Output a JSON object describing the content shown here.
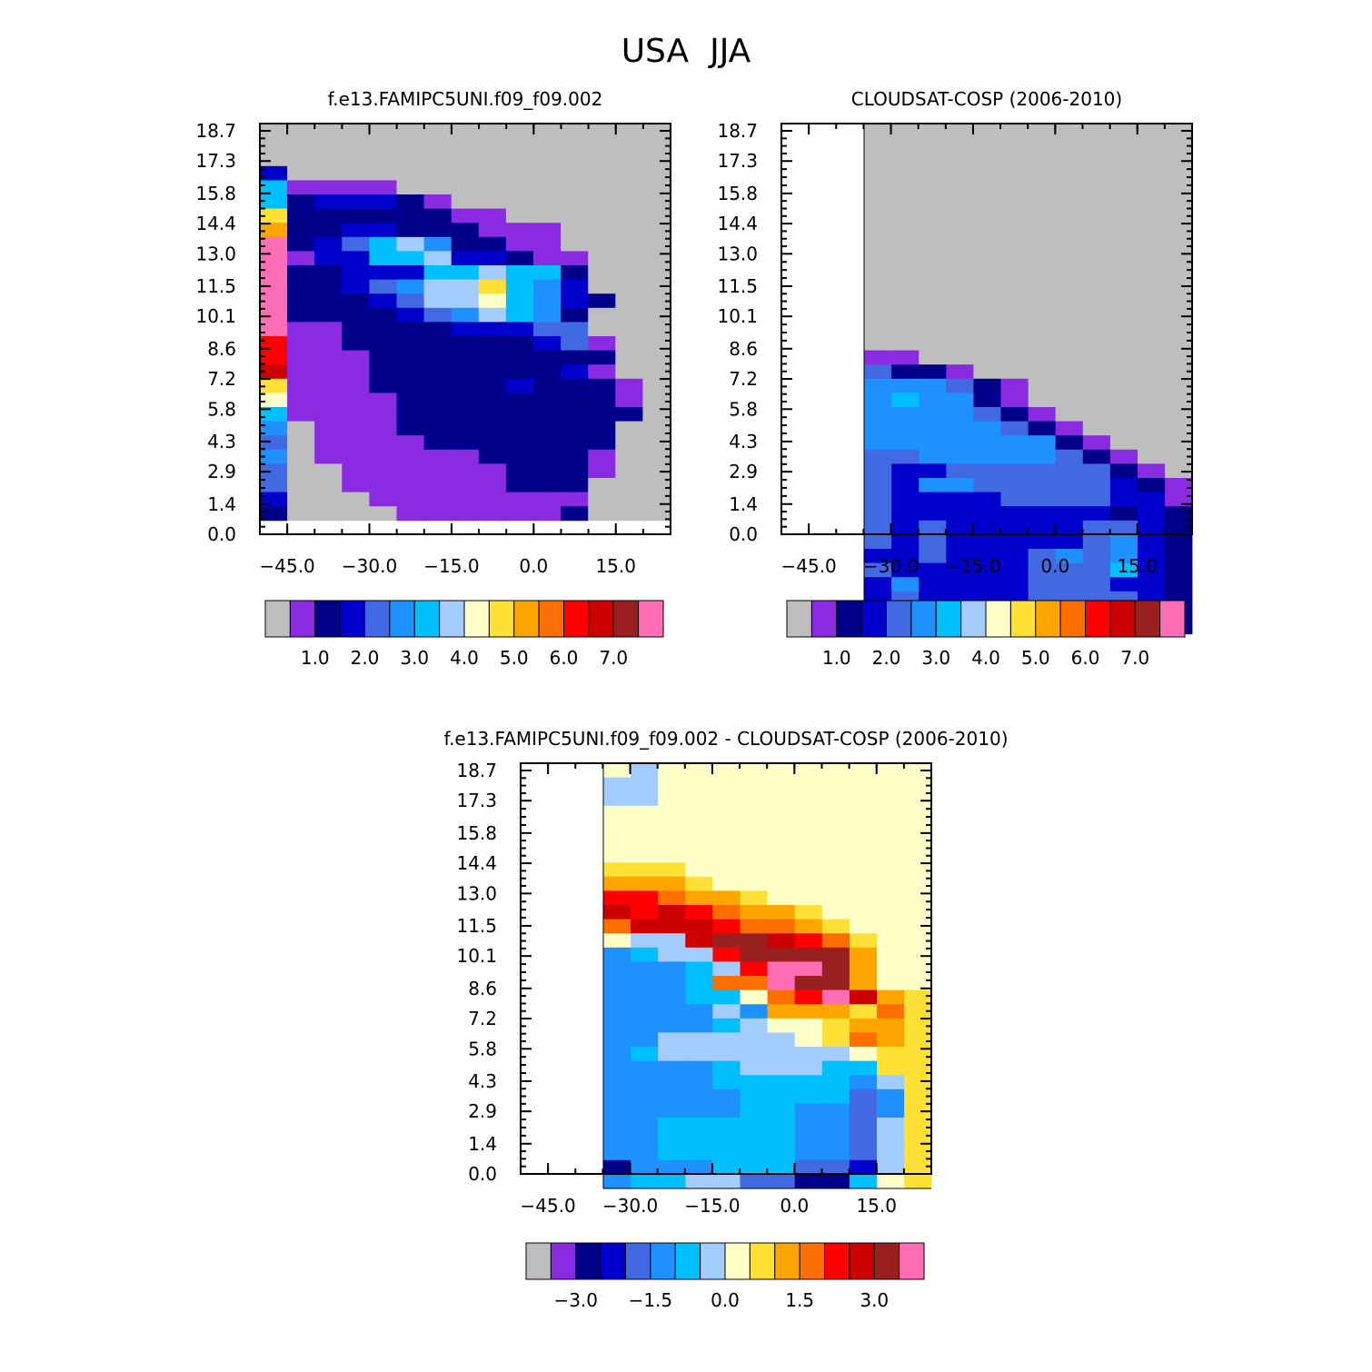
{
  "figure": {
    "title": "USA  JJA"
  },
  "colors": {
    "missing": "#bebebe",
    "palette": [
      "#bebebe",
      "#8a2be2",
      "#00008b",
      "#0000cd",
      "#4169e1",
      "#1e90ff",
      "#00bfff",
      "#a3cdfe",
      "#ffffc8",
      "#ffe135",
      "#ffa500",
      "#ff6f00",
      "#ff0000",
      "#cd0000",
      "#9a2020",
      "#ff6eb4"
    ]
  },
  "chart_data": [
    {
      "type": "heatmap",
      "title": "f.e13.FAMIPC5UNI.f09_f09.002",
      "x_ticks": [
        "-45.0",
        "-30.0",
        "-15.0",
        "0.0",
        "15.0"
      ],
      "y_ticks": [
        "0.0",
        "1.4",
        "2.9",
        "4.3",
        "5.8",
        "7.2",
        "8.6",
        "10.1",
        "11.5",
        "13.0",
        "14.4",
        "15.8",
        "17.3",
        "18.7"
      ],
      "colorbar_labels": [
        "1.0",
        "2.0",
        "3.0",
        "4.0",
        "5.0",
        "6.0",
        "7.0"
      ],
      "grid_note": "rows are y-level bins from 18.7 (top) down to 0.0; columns are x-bins from about -50 to 25; each number is a colour-bin index (0 = grey background)",
      "cells": [
        "000000000000000",
        "000000000000000",
        "000000000000000",
        "300000000000000",
        "611110000000000",
        "623332100000000",
        "922222211000000",
        "A22332221110000",
        "F23467522110000",
        "F13366733211000",
        "F22333667662000",
        "F22345779653000",
        "F22234778653200",
        "F22223457652000",
        "F11222233344000",
        "C11222222234100",
        "C11122222222200",
        "D11122222223100",
        "9111222223222100",
        "8111122222222100",
        "611112222222220",
        "501112222222200",
        "401111222222200",
        "501111112222100",
        "400111111222100",
        "400111111222000",
        "300011111111000",
        "200001111112000"
      ]
    },
    {
      "type": "heatmap",
      "title": "CLOUDSAT-COSP (2006-2010)",
      "x_ticks": [
        "-45.0",
        "-30.0",
        "-15.0",
        "0.0",
        "15.0"
      ],
      "y_ticks": [
        "0.0",
        "1.4",
        "2.9",
        "4.3",
        "5.8",
        "7.2",
        "8.6",
        "10.1",
        "11.5",
        "13.0",
        "14.4",
        "15.8",
        "17.3",
        "18.7"
      ],
      "colorbar_labels": [
        "1.0",
        "2.0",
        "3.0",
        "4.0",
        "5.0",
        "6.0",
        "7.0"
      ],
      "grid_note": "valid region spans x from about -35 to 25 and y from 0.7 to 18.7; column index 0 starts at x = -35",
      "cells": [
        "000000000000",
        "000000000000",
        "000000000000",
        "000000000000",
        "000000000000",
        "000000000000",
        "000000000000",
        "000000000000",
        "000000000000",
        "000000000000",
        "000000000000",
        "000000000000",
        "000000000000",
        "000000000000",
        "000000000000",
        "000000000000",
        "110000000000",
        "422100000000",
        "555421000000",
        "565521000000",
        "555542100000",
        "555554210000",
        "555555521000",
        "445555542100",
        "433444444210",
        "435544444321",
        "433334444331",
        "433333333232",
        "434333334432",
        "434333334532",
        "334333454532",
        "433333444632",
        "353333444332",
        "343333444432",
        "624333445532",
        "232222228832"
      ]
    },
    {
      "type": "heatmap",
      "title": "f.e13.FAMIPC5UNI.f09_f09.002 - CLOUDSAT-COSP (2006-2010)",
      "x_ticks": [
        "-45.0",
        "-30.0",
        "-15.0",
        "0.0",
        "15.0"
      ],
      "y_ticks": [
        "0.0",
        "1.4",
        "2.9",
        "4.3",
        "5.8",
        "7.2",
        "8.6",
        "10.1",
        "11.5",
        "13.0",
        "14.4",
        "15.8",
        "17.3",
        "18.7"
      ],
      "colorbar_labels": [
        "-3.0",
        "-1.5",
        "0.0",
        "1.5",
        "3.0"
      ],
      "grid_note": "difference field; valid region spans x from about -35 to 25 and y from 0.7 to 18.7",
      "cells": [
        "87888888888888",
        "77888888888888",
        "77888888888888",
        "88888888888888",
        "88888888888888",
        "88888888888888",
        "88888888888888",
        "99988888888888",
        "AAA98888888888",
        "CCBAA988888888",
        "DCDCBAA9888888",
        "BDDDCBBA988888",
        "877DEEDCB98888",
        "5677CEEEEA8888",
        "55567CFFEA8888",
        "5556BBFEEA8888",
        "555668BCFDA988",
        "555575AAA9B988",
        "555567889AA988",
        "557777789BA988",
        "567777777899888",
        "555567776699888",
        "555566666579888",
        "555556666459888",
        "555556655459888",
        "556666655479888",
        "556666655479888",
        "556666655479888",
        "255566644379888",
        "566774422689888"
      ]
    }
  ]
}
